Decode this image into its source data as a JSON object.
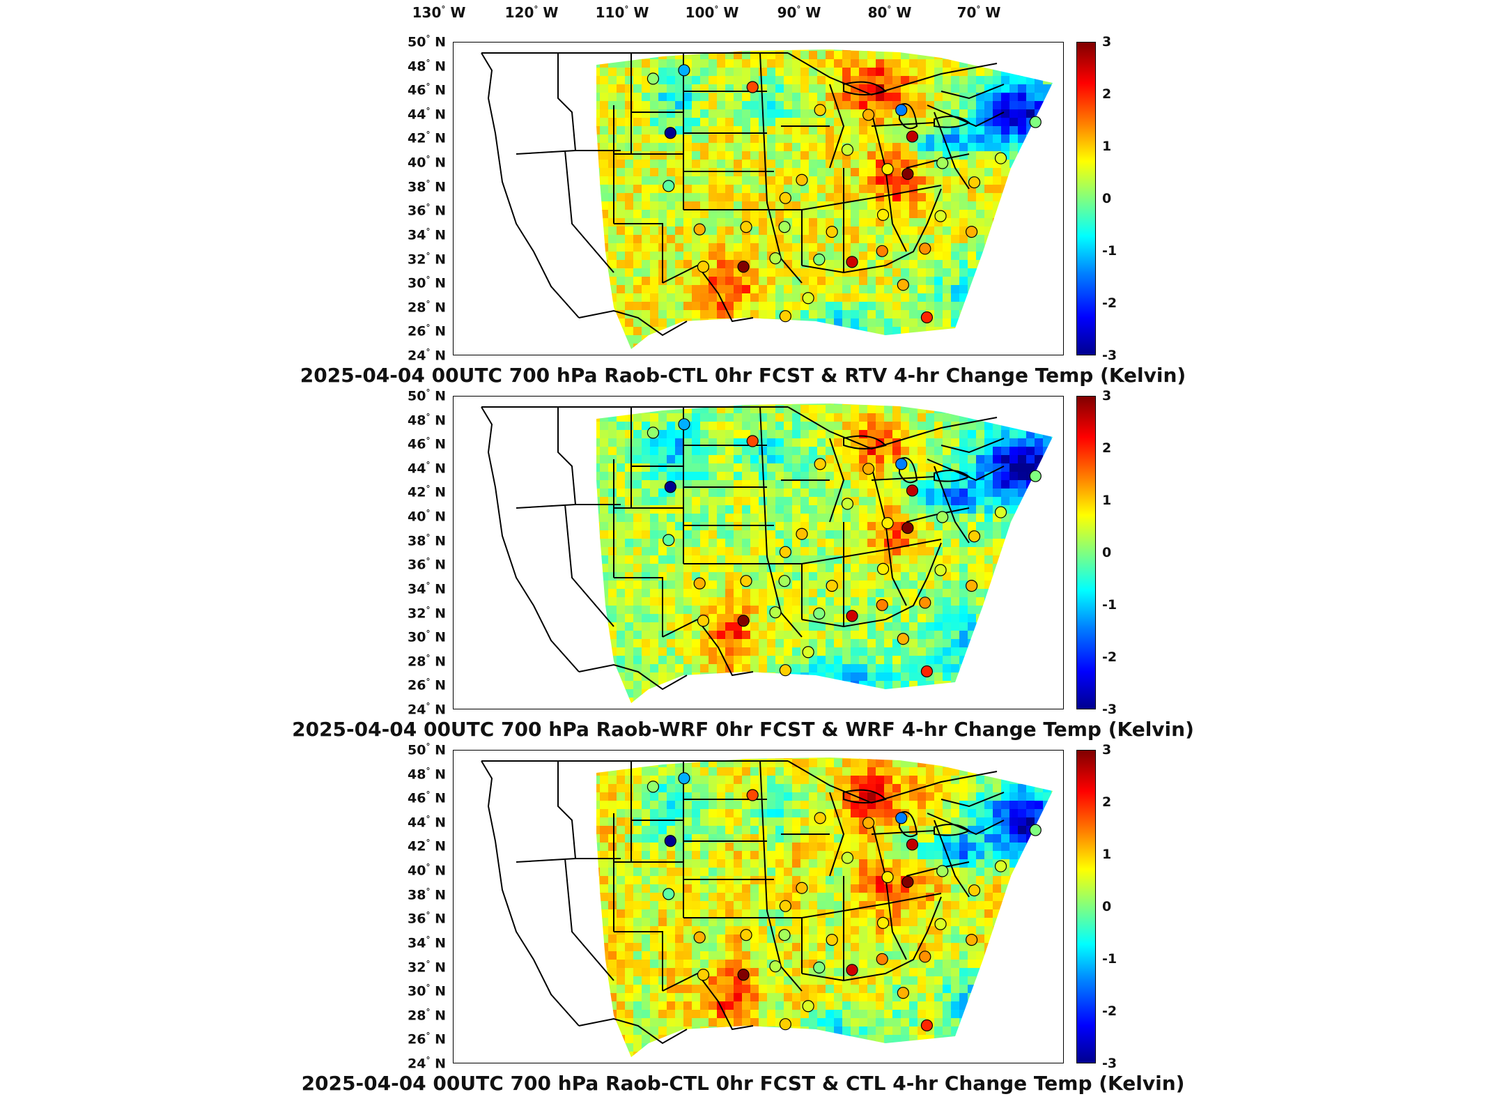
{
  "longitude_labels": [
    {
      "value": "130",
      "unit": "W"
    },
    {
      "value": "120",
      "unit": "W"
    },
    {
      "value": "110",
      "unit": "W"
    },
    {
      "value": "100",
      "unit": "W"
    },
    {
      "value": "90",
      "unit": "W"
    },
    {
      "value": "80",
      "unit": "W"
    },
    {
      "value": "70",
      "unit": "W"
    }
  ],
  "latitude_labels": [
    {
      "value": "50",
      "unit": "N"
    },
    {
      "value": "48",
      "unit": "N"
    },
    {
      "value": "46",
      "unit": "N"
    },
    {
      "value": "44",
      "unit": "N"
    },
    {
      "value": "42",
      "unit": "N"
    },
    {
      "value": "40",
      "unit": "N"
    },
    {
      "value": "38",
      "unit": "N"
    },
    {
      "value": "36",
      "unit": "N"
    },
    {
      "value": "34",
      "unit": "N"
    },
    {
      "value": "32",
      "unit": "N"
    },
    {
      "value": "30",
      "unit": "N"
    },
    {
      "value": "28",
      "unit": "N"
    },
    {
      "value": "26",
      "unit": "N"
    },
    {
      "value": "24",
      "unit": "N"
    }
  ],
  "colorbar": {
    "ticks": [
      "3",
      "2",
      "1",
      "0",
      "-1",
      "-2",
      "-3"
    ],
    "colors": {
      "min": "#00008f",
      "mid": "#80ff80",
      "max": "#800000"
    }
  },
  "panels": [
    {
      "title": "2025-04-04 00UTC 700 hPa Raob-CTL 0hr FCST & RTV 4-hr Change Temp (Kelvin)"
    },
    {
      "title": "2025-04-04 00UTC 700 hPa Raob-WRF 0hr FCST & WRF 4-hr Change Temp (Kelvin)"
    },
    {
      "title": "2025-04-04 00UTC 700 hPa Raob-CTL 0hr FCST & CTL 4-hr Change Temp (Kelvin)"
    }
  ],
  "raob_stations": [
    {
      "lon": -111.9,
      "lat": 47.5,
      "value": 0.1
    },
    {
      "lon": -108.5,
      "lat": 48.2,
      "value": -1.2
    },
    {
      "lon": -101.0,
      "lat": 46.8,
      "value": 1.8
    },
    {
      "lon": -93.6,
      "lat": 44.9,
      "value": 1.0
    },
    {
      "lon": -84.7,
      "lat": 44.9,
      "value": -1.5
    },
    {
      "lon": -88.3,
      "lat": 44.5,
      "value": 1.2
    },
    {
      "lon": -83.5,
      "lat": 42.7,
      "value": 2.6
    },
    {
      "lon": -110.0,
      "lat": 43.0,
      "value": -3.0
    },
    {
      "lon": -90.6,
      "lat": 41.6,
      "value": 0.4
    },
    {
      "lon": -86.2,
      "lat": 40.0,
      "value": 0.8
    },
    {
      "lon": -84.0,
      "lat": 39.6,
      "value": 3.0
    },
    {
      "lon": -80.2,
      "lat": 40.5,
      "value": 0.2
    },
    {
      "lon": -76.7,
      "lat": 38.9,
      "value": 1.0
    },
    {
      "lon": -95.6,
      "lat": 39.1,
      "value": 1.1
    },
    {
      "lon": -97.4,
      "lat": 37.6,
      "value": 1.0
    },
    {
      "lon": -110.2,
      "lat": 38.6,
      "value": -0.2
    },
    {
      "lon": -106.8,
      "lat": 35.0,
      "value": 1.2
    },
    {
      "lon": -101.7,
      "lat": 35.2,
      "value": 1.0
    },
    {
      "lon": -97.5,
      "lat": 35.2,
      "value": 0.2
    },
    {
      "lon": -92.3,
      "lat": 34.8,
      "value": 1.0
    },
    {
      "lon": -86.7,
      "lat": 36.2,
      "value": 0.8
    },
    {
      "lon": -80.4,
      "lat": 36.1,
      "value": 0.5
    },
    {
      "lon": -82.1,
      "lat": 33.4,
      "value": 1.4
    },
    {
      "lon": -77.0,
      "lat": 34.8,
      "value": 1.2
    },
    {
      "lon": -86.8,
      "lat": 33.2,
      "value": 1.5
    },
    {
      "lon": -90.1,
      "lat": 32.3,
      "value": 2.5
    },
    {
      "lon": -84.5,
      "lat": 30.4,
      "value": 1.2
    },
    {
      "lon": -93.7,
      "lat": 32.5,
      "value": 0.0
    },
    {
      "lon": -98.5,
      "lat": 32.6,
      "value": 0.3
    },
    {
      "lon": -106.4,
      "lat": 31.9,
      "value": 1.0
    },
    {
      "lon": -102.0,
      "lat": 31.9,
      "value": 3.0
    },
    {
      "lon": -97.4,
      "lat": 27.8,
      "value": 1.0
    },
    {
      "lon": -81.9,
      "lat": 27.7,
      "value": 2.0
    },
    {
      "lon": -94.9,
      "lat": 29.3,
      "value": 0.5
    },
    {
      "lon": -73.8,
      "lat": 40.9,
      "value": 0.5
    },
    {
      "lon": -70.0,
      "lat": 43.9,
      "value": 0.0
    }
  ]
}
